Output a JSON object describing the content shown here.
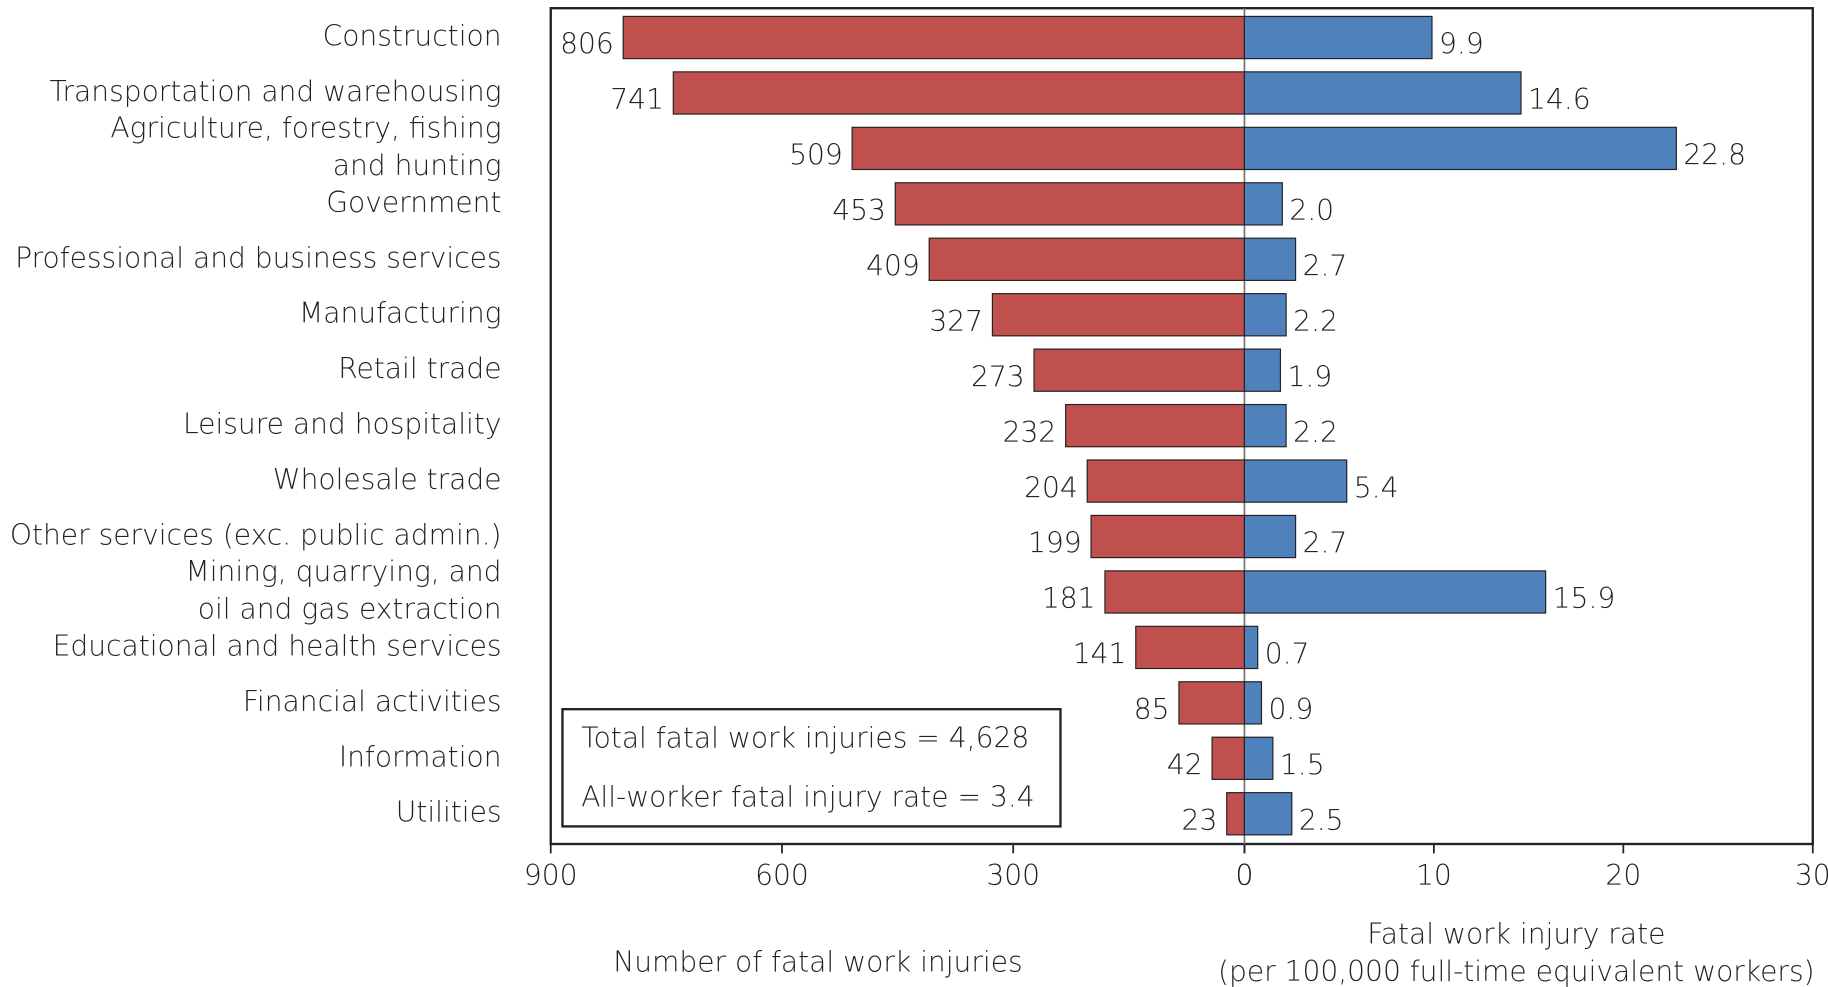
{
  "chart_data": {
    "type": "butterfly",
    "categories": [
      "Construction",
      "Transportation and warehousing",
      "Agriculture, forestry, fishing\nand hunting",
      "Government",
      "Professional and business services",
      "Manufacturing",
      "Retail trade",
      "Leisure and hospitality",
      "Wholesale trade",
      "Other services (exc. public admin.)",
      "Mining, quarrying, and\noil and gas extraction",
      "Educational and health services",
      "Financial activities",
      "Information",
      "Utilities"
    ],
    "series": [
      {
        "name": "Number of fatal work injuries",
        "color": "#c0504d",
        "side": "left",
        "values": [
          806,
          741,
          509,
          453,
          409,
          327,
          273,
          232,
          204,
          199,
          181,
          141,
          85,
          42,
          23
        ],
        "xlim": [
          0,
          900
        ],
        "xticks": [
          0,
          300,
          600,
          900
        ]
      },
      {
        "name": "Fatal work injury rate\n(per 100,000 full-time equivalent workers)",
        "color": "#4f81bd",
        "side": "right",
        "values": [
          9.9,
          14.6,
          22.8,
          2.0,
          2.7,
          2.2,
          1.9,
          2.2,
          5.4,
          2.7,
          15.9,
          0.7,
          0.9,
          1.5,
          2.5
        ],
        "value_labels": [
          "9.9",
          "14.6",
          "22.8",
          "2.0",
          "2.7",
          "2.2",
          "1.9",
          "2.2",
          "5.4",
          "2.7",
          "15.9",
          "0.7",
          "0.9",
          "1.5",
          "2.5"
        ],
        "xlim": [
          0,
          30
        ],
        "xticks": [
          0,
          10,
          20,
          30
        ]
      }
    ],
    "annotations": [
      "Total fatal work injuries = 4,628",
      "All-worker fatal injury rate = 3.4"
    ]
  }
}
